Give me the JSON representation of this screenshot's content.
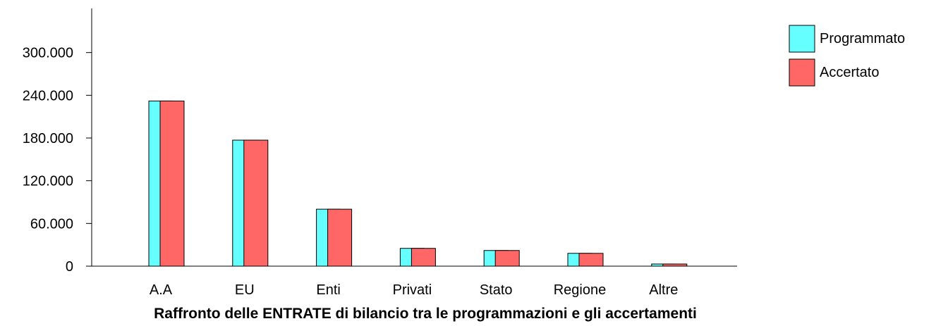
{
  "chart_data": {
    "type": "bar",
    "title": "Raffronto delle ENTRATE di bilancio tra le programmazioni e gli accertamenti",
    "xlabel": "",
    "ylabel": "",
    "ylim": [
      0,
      360000
    ],
    "yticks": [
      0,
      60000,
      120000,
      180000,
      240000,
      300000
    ],
    "ytick_labels": [
      "0",
      "60.000",
      "120.000",
      "180.000",
      "240.000",
      "300.000"
    ],
    "categories": [
      "A.A",
      "EU",
      "Enti",
      "Privati",
      "Stato",
      "Regione",
      "Altre"
    ],
    "series": [
      {
        "name": "Programmato",
        "color": "#66ffff",
        "values": [
          232000,
          177000,
          80000,
          25000,
          22000,
          18000,
          3000
        ]
      },
      {
        "name": "Accertato",
        "color": "#ff6666",
        "values": [
          232000,
          177000,
          80000,
          25000,
          22000,
          18000,
          3000
        ]
      }
    ],
    "grid": false,
    "legend_position": "top-right"
  }
}
